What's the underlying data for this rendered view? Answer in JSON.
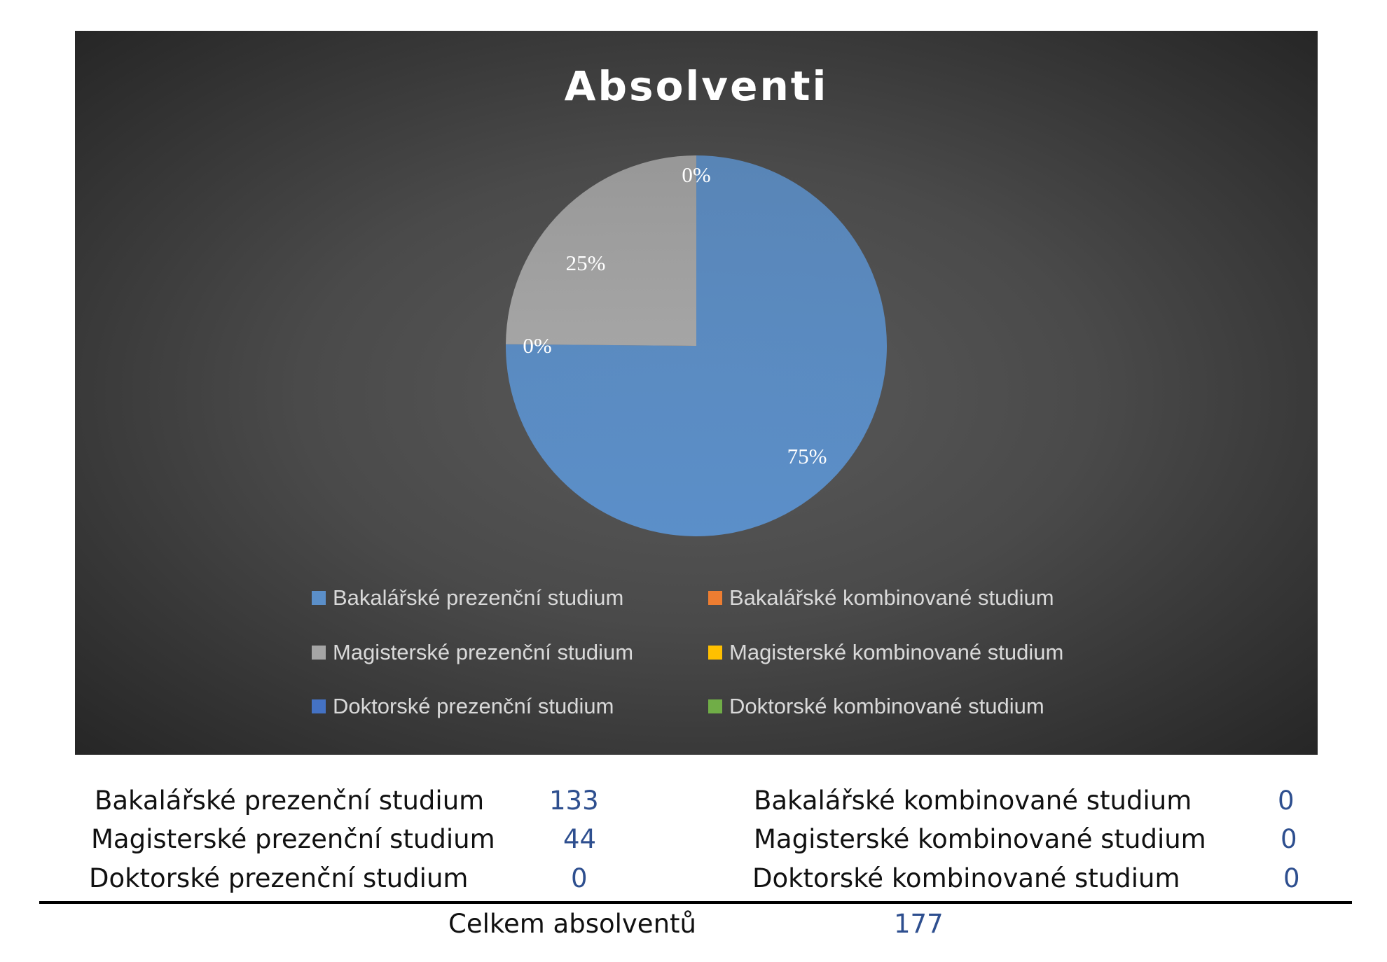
{
  "chart_data": {
    "type": "pie",
    "title": "Absolventi",
    "slices": [
      {
        "name": "Bakalářské prezenční studium",
        "value": 133,
        "label": "75%",
        "color": "#5b8fc9"
      },
      {
        "name": "Bakalářské kombinované studium",
        "value": 0,
        "label": "0%",
        "color": "#ed7d31"
      },
      {
        "name": "Magisterské prezenční studium",
        "value": 44,
        "label": "25%",
        "color": "#a5a5a5"
      },
      {
        "name": "Magisterské kombinované studium",
        "value": 0,
        "label": "",
        "color": "#ffc000"
      },
      {
        "name": "Doktorské prezenční studium",
        "value": 0,
        "label": "0%",
        "color": "#4472c4"
      },
      {
        "name": "Doktorské kombinované studium",
        "value": 0,
        "label": "",
        "color": "#70ad47"
      }
    ],
    "legend_position": "bottom"
  },
  "summary": {
    "rows": [
      {
        "left_label": "Bakalářské prezenční studium",
        "left_value": "133",
        "right_label": "Bakalářské kombinované studium",
        "right_value": "0"
      },
      {
        "left_label": "Magisterské prezenční studium",
        "left_value": "44",
        "right_label": "Magisterské kombinované studium",
        "right_value": "0"
      },
      {
        "left_label": "Doktorské prezenční studium",
        "left_value": "0",
        "right_label": "Doktorské kombinované studium",
        "right_value": "0"
      }
    ],
    "total_label": "Celkem absolventů",
    "total_value": "177"
  }
}
